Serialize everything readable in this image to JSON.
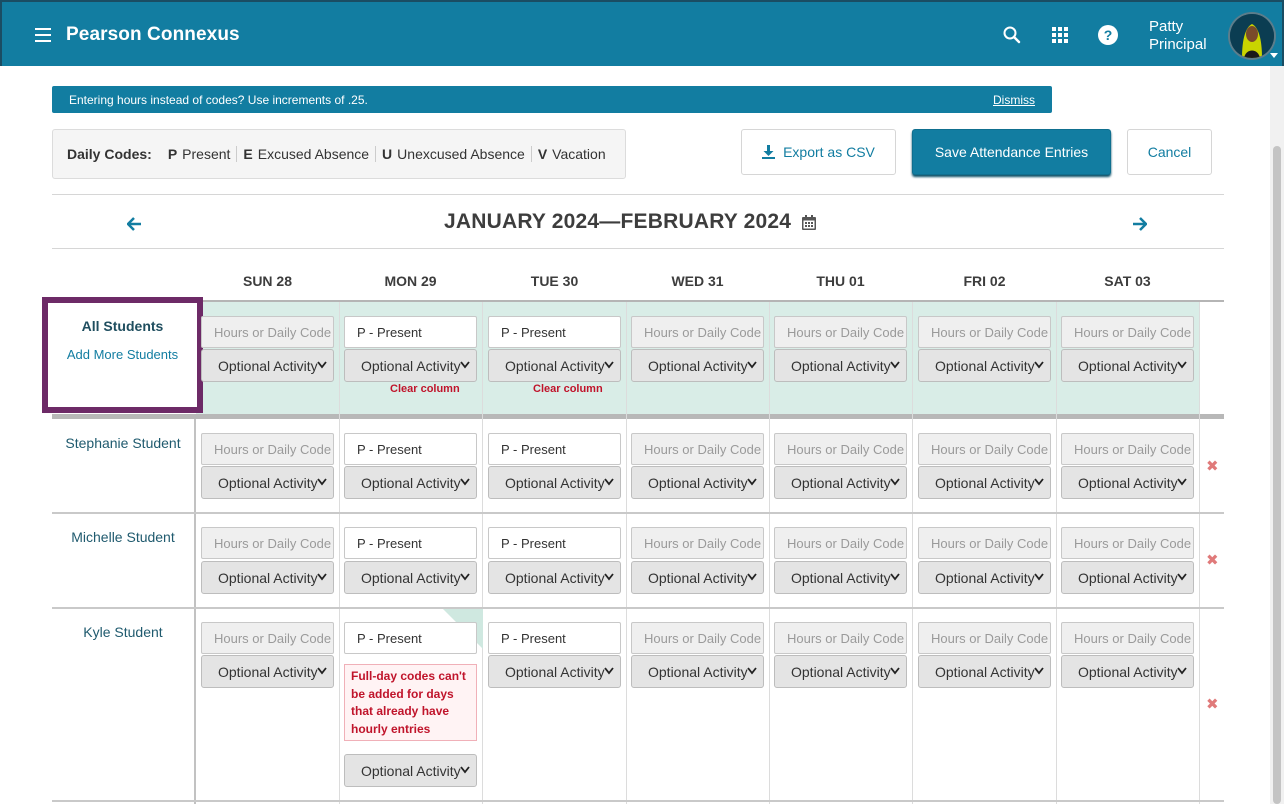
{
  "header": {
    "app_title": "Pearson Connexus",
    "user_first": "Patty",
    "user_last": "Principal",
    "icons": [
      "menu-icon",
      "search-icon",
      "apps-grid-icon",
      "help-icon",
      "avatar"
    ]
  },
  "banner": {
    "text": "Entering hours instead of codes? Use increments of .25.",
    "dismiss": "Dismiss"
  },
  "codes": {
    "label": "Daily Codes:",
    "items": [
      {
        "key": "P",
        "desc": "Present"
      },
      {
        "key": "E",
        "desc": "Excused Absence"
      },
      {
        "key": "U",
        "desc": "Unexcused Absence"
      },
      {
        "key": "V",
        "desc": "Vacation"
      }
    ]
  },
  "actions": {
    "export": "Export as CSV",
    "save": "Save Attendance Entries",
    "cancel": "Cancel"
  },
  "nav": {
    "title": "JANUARY 2024—FEBRUARY 2024"
  },
  "days": [
    "SUN 28",
    "MON 29",
    "TUE 30",
    "WED 31",
    "THU 01",
    "FRI 02",
    "SAT 03"
  ],
  "all_students": {
    "title": "All Students",
    "add_more": "Add More Students",
    "clear_column": "Clear column"
  },
  "cell": {
    "placeholder": "Hours or Daily Code",
    "present": "P - Present",
    "activity": "Optional Activity"
  },
  "students": [
    "Stephanie Student",
    "Michelle Student",
    "Kyle Student"
  ],
  "error": {
    "message": "Full-day codes can't be added for days that already have hourly entries"
  },
  "colors": {
    "primary": "#127da1",
    "highlight_row": "#d9ede7",
    "focus_border": "#6d2a67",
    "error": "#c0142b"
  }
}
